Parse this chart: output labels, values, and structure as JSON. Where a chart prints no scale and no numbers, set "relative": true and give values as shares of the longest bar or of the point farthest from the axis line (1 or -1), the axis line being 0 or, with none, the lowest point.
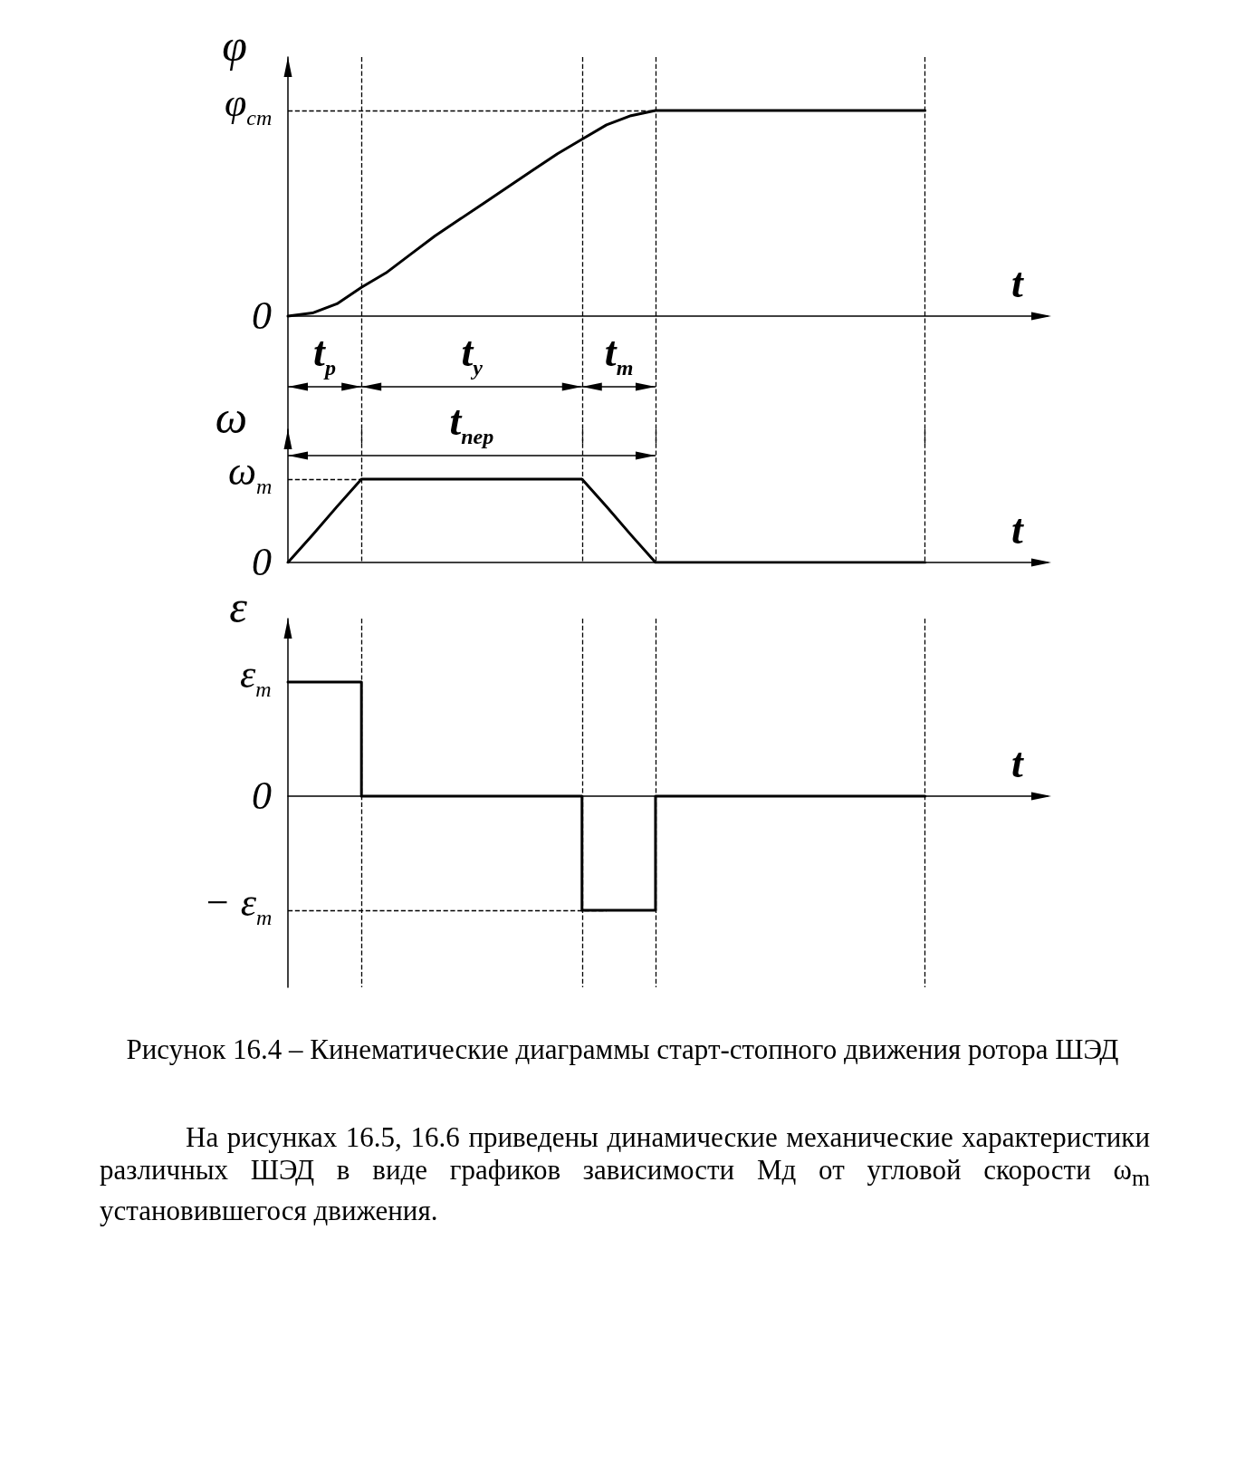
{
  "chart_data": [
    {
      "type": "line",
      "relative": true,
      "ylabel": "φ",
      "xlabel": "t",
      "grid": "x",
      "categories": [
        null,
        null,
        null,
        null,
        null,
        null,
        null,
        null,
        null,
        null,
        null,
        null,
        null,
        null,
        null,
        null,
        null,
        null,
        null,
        null,
        null,
        null,
        null,
        null,
        null,
        null,
        null,
        null,
        null,
        null,
        null,
        null
      ],
      "series": [
        {
          "color": "#000000",
          "values": [
            0,
            0.015,
            0.06,
            0.14,
            0.21,
            0.3,
            0.39,
            0.47,
            0.55,
            0.63,
            0.71,
            0.79,
            0.86,
            0.93,
            0.975,
            1,
            1,
            1,
            1,
            1,
            1,
            1,
            1,
            1,
            1,
            1,
            1,
            null,
            null,
            null,
            null,
            null
          ]
        }
      ],
      "ref_lines": [
        {
          "axis": "y",
          "value": 1,
          "color": "#000000",
          "line_style": "dashed"
        }
      ],
      "annotations": [
        "φ$_{ст}$",
        "0",
        "t$_{р}$",
        "t$_{у}$",
        "t$_{т}$",
        "t$_{пер}$"
      ]
    },
    {
      "type": "line",
      "relative": true,
      "ylabel": "ω",
      "xlabel": "t",
      "grid": "x",
      "categories": [
        null,
        null,
        null,
        null,
        null,
        null,
        null,
        null,
        null,
        null,
        null,
        null,
        null,
        null,
        null,
        null,
        null,
        null,
        null,
        null,
        null,
        null,
        null,
        null,
        null,
        null,
        null,
        null,
        null,
        null,
        null,
        null
      ],
      "series": [
        {
          "color": "#000000",
          "values": [
            0,
            0.33,
            0.67,
            1,
            1,
            1,
            1,
            1,
            1,
            1,
            1,
            1,
            1,
            0.67,
            0.33,
            0,
            0,
            0,
            0,
            0,
            0,
            0,
            0,
            0,
            0,
            0,
            0,
            null,
            null,
            null,
            null,
            null
          ]
        }
      ],
      "ref_lines": [
        {
          "axis": "y",
          "value": 1,
          "color": "#000000",
          "line_style": "dashed"
        }
      ],
      "annotations": [
        "ω$_{m}$",
        "0"
      ]
    },
    {
      "type": "step",
      "relative": true,
      "ylabel": "ε",
      "xlabel": "t",
      "grid": "x",
      "categories": [
        null,
        null,
        null,
        null,
        null,
        null,
        null,
        null,
        null,
        null,
        null,
        null,
        null,
        null,
        null,
        null,
        null,
        null,
        null,
        null,
        null,
        null,
        null,
        null,
        null,
        null,
        null,
        null,
        null,
        null,
        null,
        null
      ],
      "series": [
        {
          "color": "#000000",
          "values": [
            1,
            1,
            1,
            1,
            0,
            0,
            0,
            0,
            0,
            0,
            0,
            0,
            0,
            -1,
            -1,
            -1,
            0,
            0,
            0,
            0,
            0,
            0,
            0,
            0,
            0,
            0,
            0,
            null,
            null,
            null,
            null,
            null
          ]
        }
      ],
      "ref_lines": [
        {
          "axis": "y",
          "value": -1,
          "color": "#000000",
          "line_style": "dashed"
        }
      ],
      "title": "Рисунок 16.4 – Кинематические диаграммы старт-стопного движения ротора ШЭД",
      "annotations": [
        "ε$_{m}$",
        "0",
        "− ε$_{m}$",
        "На рисунках 16.5, 16.6 приведены динамические механические характеристики различных ШЭД в виде графиков зависимости Мд от угловой скорости ω$_{m}$ установившегося движения."
      ]
    }
  ]
}
